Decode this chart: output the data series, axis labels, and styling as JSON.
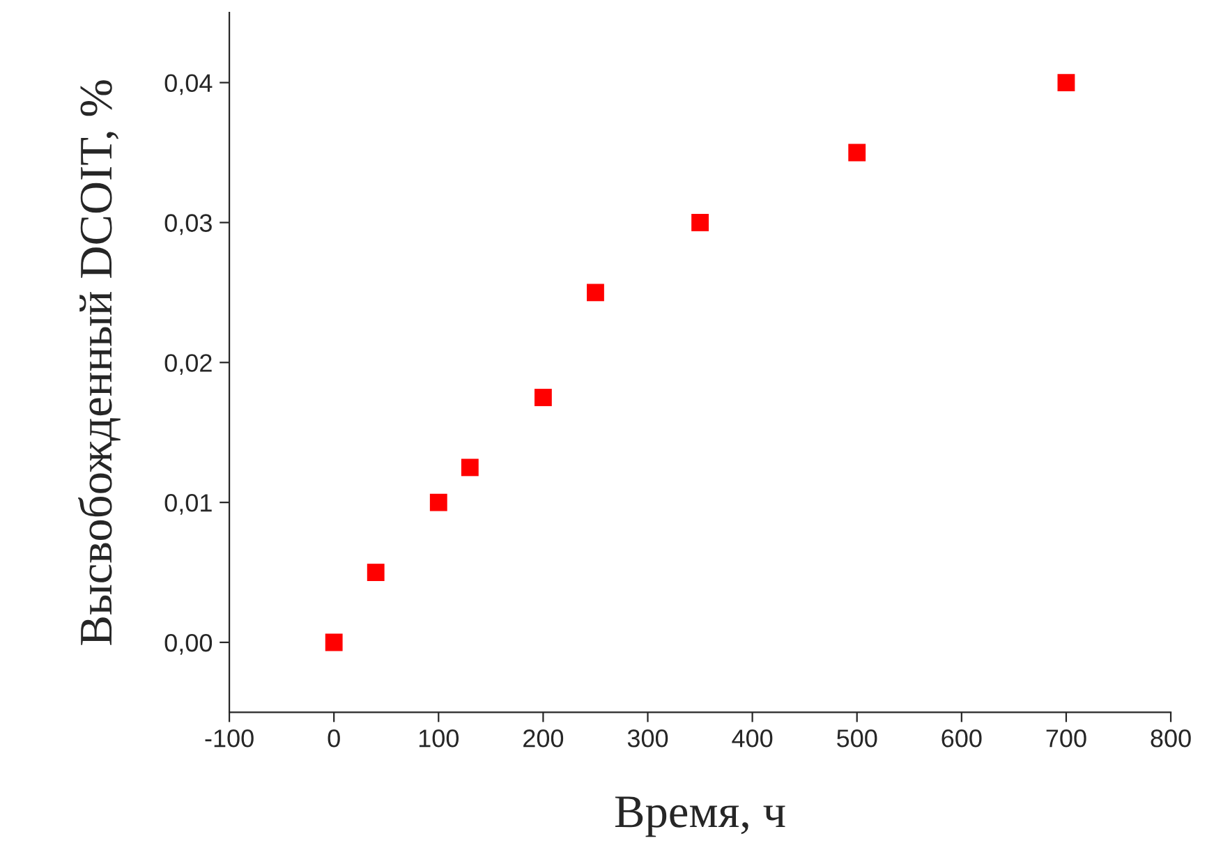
{
  "chart_data": {
    "type": "scatter",
    "xlabel": "Время, ч",
    "ylabel": "Высвобожденный DCOIT, %",
    "x": [
      0,
      40,
      100,
      130,
      200,
      250,
      350,
      500,
      700
    ],
    "series": [
      {
        "color": "#ff0000",
        "values": [
          0,
          0.005,
          0.01,
          0.0125,
          0.0175,
          0.025,
          0.03,
          0.035,
          0.04
        ]
      }
    ],
    "marker": "square",
    "grid": false,
    "legend": false,
    "xlim": [
      -100,
      800
    ],
    "xticks": [
      -100,
      0,
      100,
      200,
      300,
      400,
      500,
      600,
      700,
      800
    ],
    "ylim": [
      -0.005,
      0.045
    ],
    "yticks": [
      {
        "value": 0,
        "label": "0,00"
      },
      {
        "value": 0.01,
        "label": "0,01"
      },
      {
        "value": 0.02,
        "label": "0,02"
      },
      {
        "value": 0.03,
        "label": "0,03"
      },
      {
        "value": 0.04,
        "label": "0,04"
      }
    ]
  }
}
